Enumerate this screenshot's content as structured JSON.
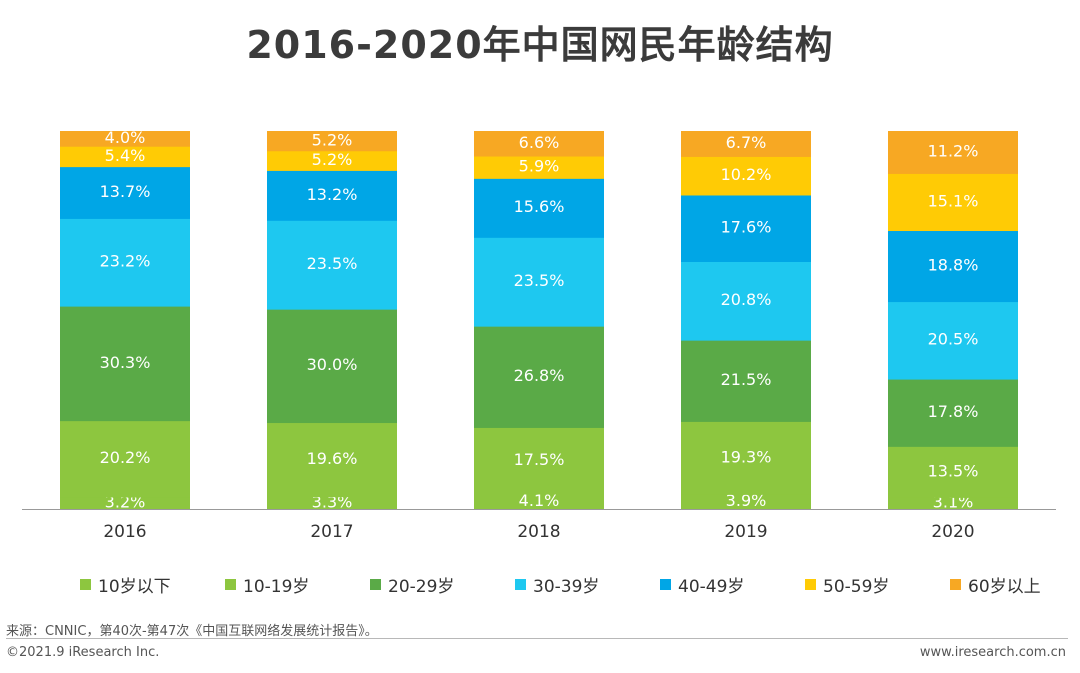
{
  "chart_data": {
    "type": "bar",
    "stacked": true,
    "title": "2016-2020年中国网民年龄结构",
    "categories": [
      "2016",
      "2017",
      "2018",
      "2019",
      "2020"
    ],
    "series": [
      {
        "name": "10岁以下",
        "color": "#8DC63F",
        "values": [
          3.2,
          3.3,
          4.1,
          3.9,
          3.1
        ],
        "labels": [
          "3.2%",
          "3.3%",
          "4.1%",
          "3.9%",
          "3.1%"
        ]
      },
      {
        "name": "10-19岁",
        "color": "#8DC63F",
        "values": [
          20.2,
          19.6,
          17.5,
          19.3,
          13.5
        ],
        "labels": [
          "20.2%",
          "19.6%",
          "17.5%",
          "19.3%",
          "13.5%"
        ]
      },
      {
        "name": "20-29岁",
        "color": "#5AAA47",
        "values": [
          30.3,
          30.0,
          26.8,
          21.5,
          17.8
        ],
        "labels": [
          "30.3%",
          "30.0%",
          "26.8%",
          "21.5%",
          "17.8%"
        ]
      },
      {
        "name": "30-39岁",
        "color": "#1EC8F0",
        "values": [
          23.2,
          23.5,
          23.5,
          20.8,
          20.5
        ],
        "labels": [
          "23.2%",
          "23.5%",
          "23.5%",
          "20.8%",
          "20.5%"
        ]
      },
      {
        "name": "40-49岁",
        "color": "#00A6E6",
        "values": [
          13.7,
          13.2,
          15.6,
          17.6,
          18.8
        ],
        "labels": [
          "13.7%",
          "13.2%",
          "15.6%",
          "17.6%",
          "18.8%"
        ]
      },
      {
        "name": "50-59岁",
        "color": "#FFCB05",
        "values": [
          5.4,
          5.2,
          5.9,
          10.2,
          15.1
        ],
        "labels": [
          "5.4%",
          "5.2%",
          "5.9%",
          "10.2%",
          "15.1%"
        ]
      },
      {
        "name": "60岁以上",
        "color": "#F7A823",
        "values": [
          4.0,
          5.2,
          6.6,
          6.7,
          11.2
        ],
        "labels": [
          "4.0%",
          "5.2%",
          "6.6%",
          "6.7%",
          "11.2%"
        ]
      }
    ],
    "ylim": [
      0,
      100
    ],
    "legend": "bottom",
    "grid": false
  },
  "footer": {
    "source": "来源：CNNIC，第40次-第47次《中国互联网络发展统计报告》。",
    "copyright": "©2021.9 iResearch Inc.",
    "website": "www.iresearch.com.cn"
  }
}
